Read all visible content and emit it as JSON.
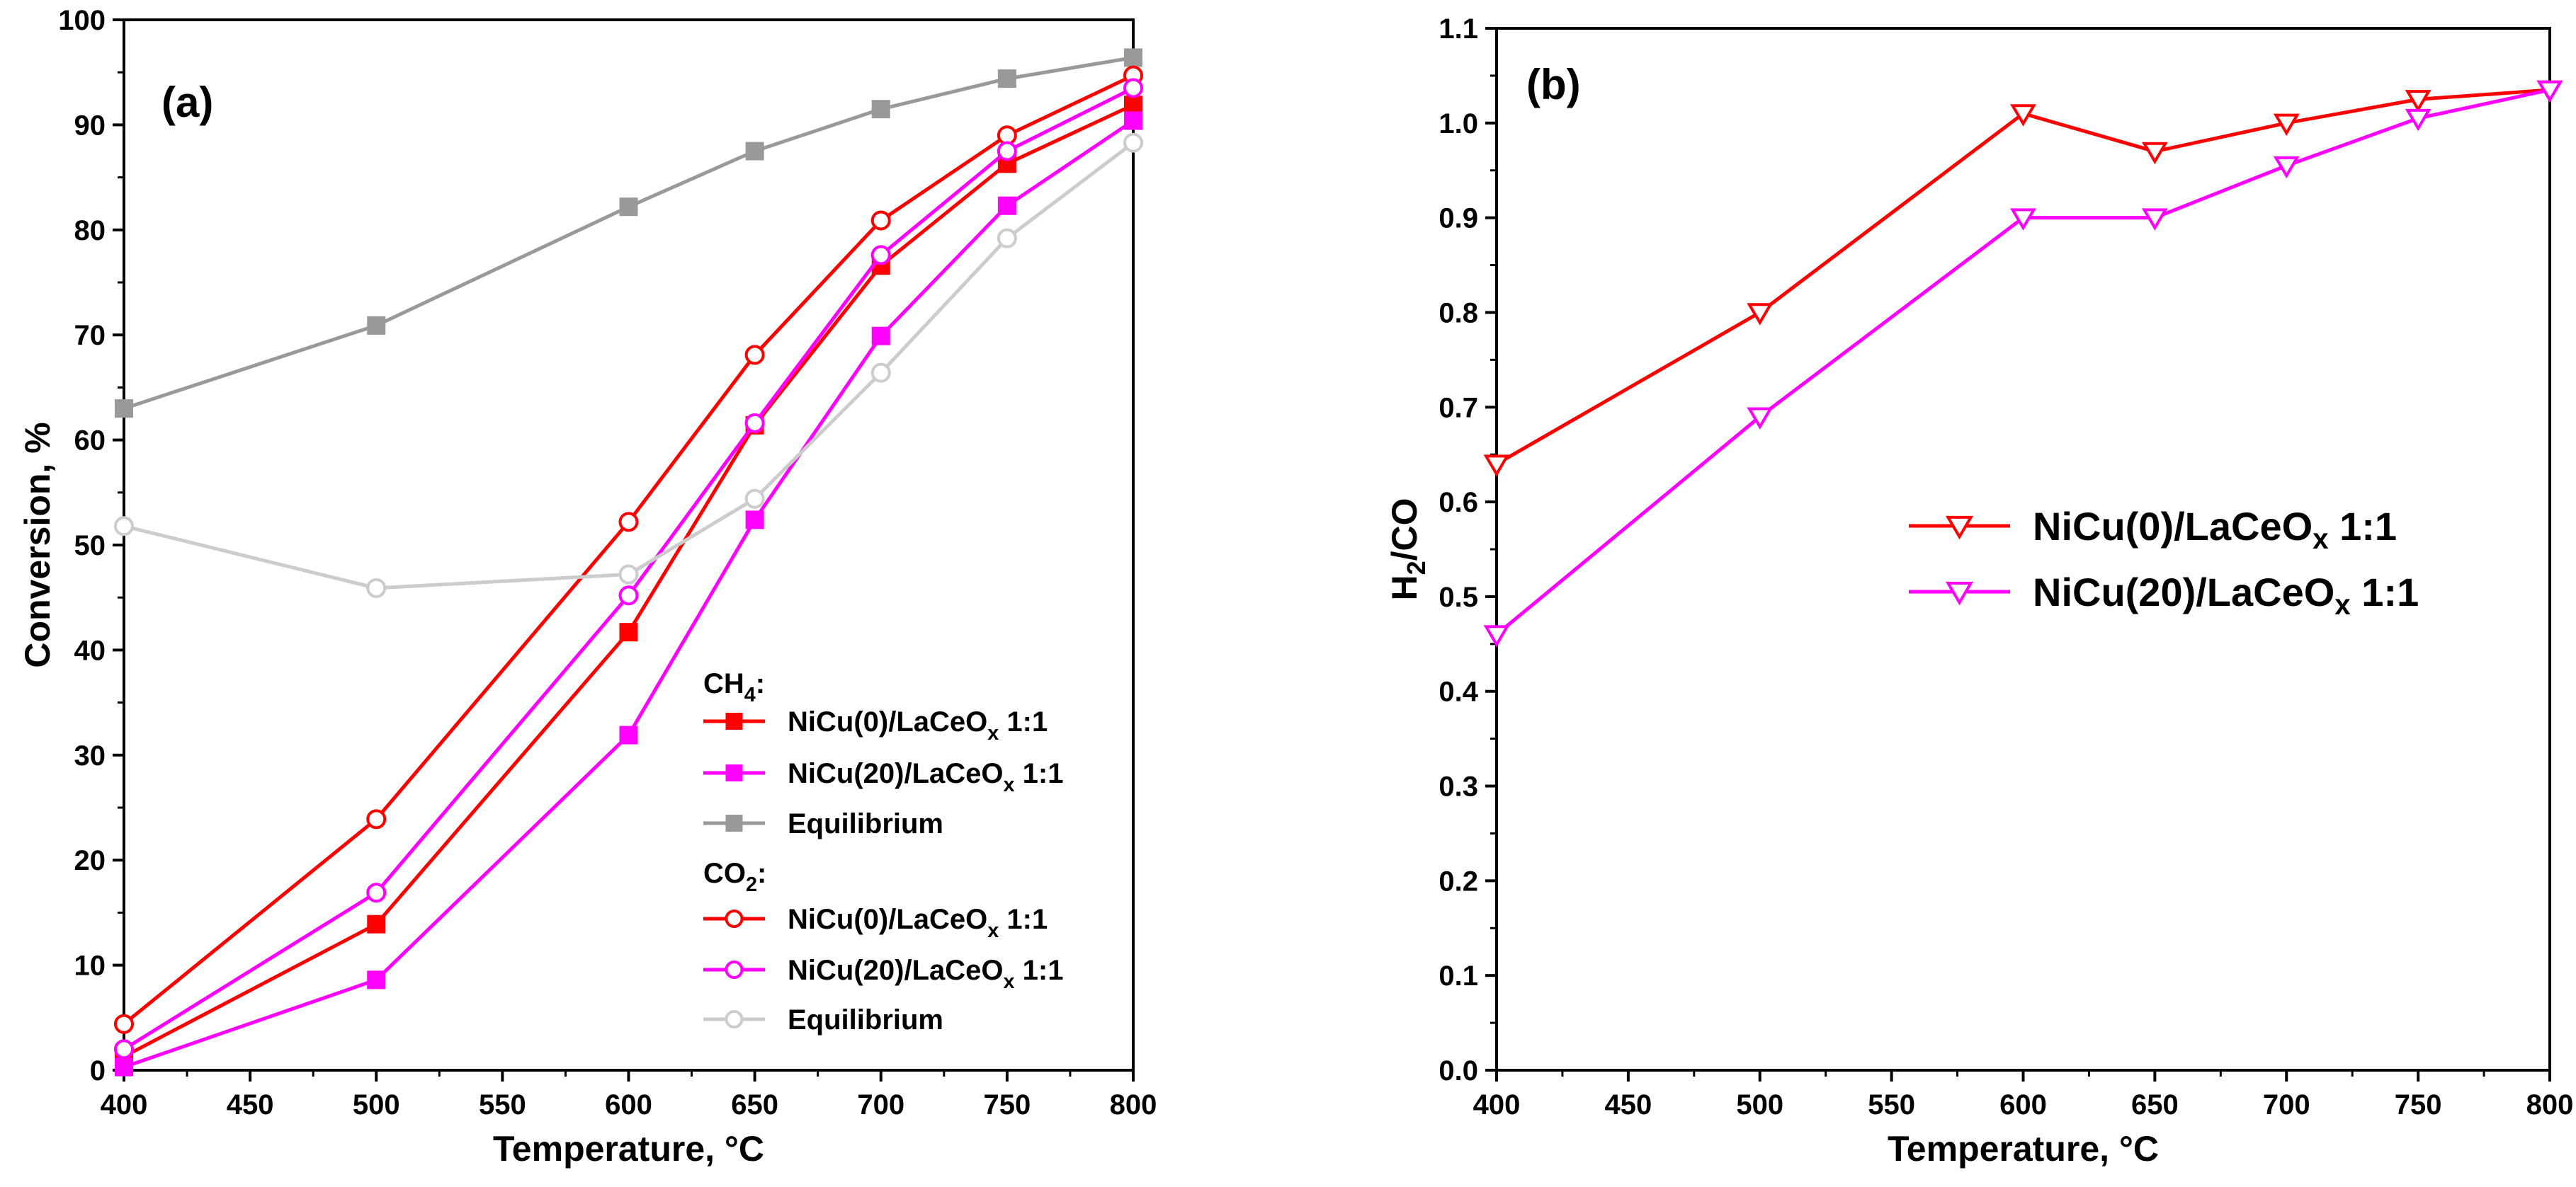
{
  "colors": {
    "red": "#ff0000",
    "magenta": "#ff00ff",
    "gray": "#999999",
    "lightgray": "#cccccc"
  },
  "chart_data": [
    {
      "panel_label": "(a)",
      "type": "line",
      "xlabel": "Temperature, °C",
      "ylabel": "Conversion, %",
      "xlim": [
        400,
        800
      ],
      "ylim": [
        0,
        100
      ],
      "xticks": [
        "400",
        "450",
        "500",
        "550",
        "600",
        "650",
        "700",
        "750",
        "800"
      ],
      "yticks": [
        "0",
        "10",
        "20",
        "30",
        "40",
        "50",
        "60",
        "70",
        "80",
        "90",
        "100"
      ],
      "legend_placement": "lower-right",
      "legend_groups": [
        {
          "base": "CH",
          "sub": "4",
          "suffix": ":"
        },
        {
          "base": "CO",
          "sub": "2",
          "suffix": ":"
        }
      ],
      "series": [
        {
          "group": 0,
          "label_pre": "NiCu(0)/LaCeO",
          "label_sub": "x",
          "label_post": " 1:1",
          "color": "#ff0000",
          "marker": "square-filled",
          "x": [
            400,
            500,
            600,
            650,
            700,
            750,
            800
          ],
          "y": [
            1.3,
            13.9,
            41.7,
            61.4,
            76.6,
            86.3,
            91.9
          ]
        },
        {
          "group": 0,
          "label_pre": "NiCu(20)/LaCeO",
          "label_sub": "x",
          "label_post": " 1:1",
          "color": "#ff00ff",
          "marker": "square-filled",
          "x": [
            400,
            500,
            600,
            650,
            700,
            750,
            800
          ],
          "y": [
            0.3,
            8.6,
            31.9,
            52.4,
            69.9,
            82.3,
            90.4
          ]
        },
        {
          "group": 0,
          "label_pre": "Equilibrium",
          "label_sub": "",
          "label_post": "",
          "color": "#999999",
          "marker": "square-filled",
          "x": [
            400,
            500,
            600,
            650,
            700,
            750,
            800
          ],
          "y": [
            63.0,
            70.9,
            82.2,
            87.5,
            91.5,
            94.4,
            96.4
          ]
        },
        {
          "group": 1,
          "label_pre": "NiCu(0)/LaCeO",
          "label_sub": "x",
          "label_post": " 1:1",
          "color": "#ff0000",
          "marker": "circle-open",
          "x": [
            400,
            500,
            600,
            650,
            700,
            750,
            800
          ],
          "y": [
            4.4,
            23.9,
            52.2,
            68.1,
            80.9,
            89.0,
            94.7
          ]
        },
        {
          "group": 1,
          "label_pre": "NiCu(20)/LaCeO",
          "label_sub": "x",
          "label_post": " 1:1",
          "color": "#ff00ff",
          "marker": "circle-open",
          "x": [
            400,
            500,
            600,
            650,
            700,
            750,
            800
          ],
          "y": [
            2.0,
            16.9,
            45.2,
            61.6,
            77.6,
            87.5,
            93.5
          ]
        },
        {
          "group": 1,
          "label_pre": "Equilibrium",
          "label_sub": "",
          "label_post": "",
          "color": "#cccccc",
          "marker": "circle-open",
          "x": [
            400,
            500,
            600,
            650,
            700,
            750,
            800
          ],
          "y": [
            51.8,
            45.9,
            47.2,
            54.4,
            66.4,
            79.2,
            88.3
          ]
        }
      ]
    },
    {
      "panel_label": "(b)",
      "type": "line",
      "xlabel": "Temperature, °C",
      "ylabel_base": "H",
      "ylabel_sub": "2",
      "ylabel_post": "/CO",
      "xlim": [
        400,
        800
      ],
      "ylim": [
        0,
        1.1
      ],
      "xticks": [
        "400",
        "450",
        "500",
        "550",
        "600",
        "650",
        "700",
        "750",
        "800"
      ],
      "yticks": [
        "0.0",
        "0.1",
        "0.2",
        "0.3",
        "0.4",
        "0.5",
        "0.6",
        "0.7",
        "0.8",
        "0.9",
        "1.0",
        "1.1"
      ],
      "legend_placement": "center-right",
      "series": [
        {
          "label_pre": "NiCu(0)/LaCeO",
          "label_sub": "x",
          "label_post": " 1:1",
          "color": "#ff0000",
          "marker": "triangle-down-open",
          "x": [
            400,
            500,
            600,
            650,
            700,
            750,
            800
          ],
          "y": [
            0.64,
            0.8,
            1.01,
            0.97,
            1.0,
            1.025,
            1.035
          ]
        },
        {
          "label_pre": "NiCu(20)/LaCeO",
          "label_sub": "x",
          "label_post": " 1:1",
          "color": "#ff00ff",
          "marker": "triangle-down-open",
          "x": [
            400,
            500,
            600,
            650,
            700,
            750,
            800
          ],
          "y": [
            0.46,
            0.69,
            0.9,
            0.9,
            0.955,
            1.005,
            1.035
          ]
        }
      ]
    }
  ]
}
